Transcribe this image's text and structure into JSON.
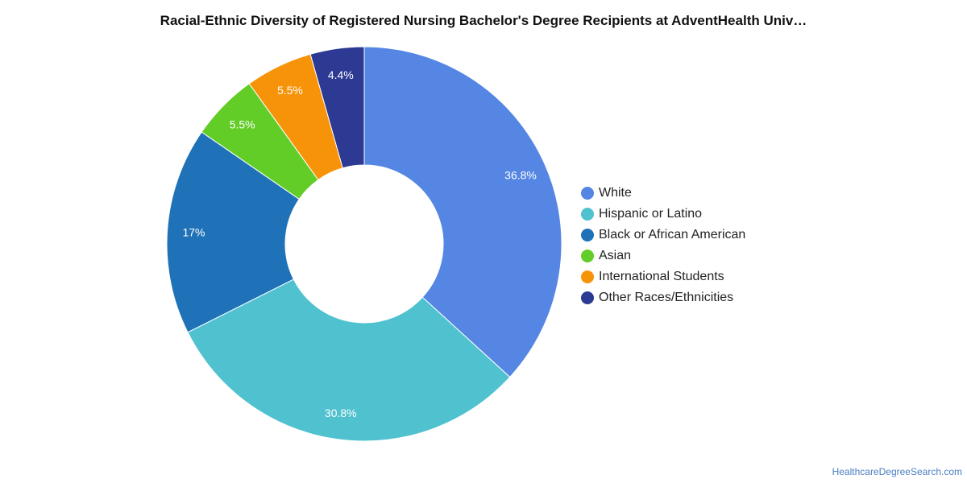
{
  "title": "Racial-Ethnic Diversity of Registered Nursing Bachelor's Degree Recipients at AdventHealth Univ…",
  "source_link": "HealthcareDegreeSearch.com",
  "chart_data": {
    "type": "pie",
    "title": "Racial-Ethnic Diversity of Registered Nursing Bachelor's Degree Recipients at AdventHealth Univ…",
    "hole": true,
    "legend_position": "right",
    "slices": [
      {
        "name": "White",
        "value": 36.8,
        "label": "36.8%",
        "color": "#5586e3"
      },
      {
        "name": "Hispanic or Latino",
        "value": 30.8,
        "label": "30.8%",
        "color": "#50c2cf"
      },
      {
        "name": "Black or African American",
        "value": 17,
        "label": "17%",
        "color": "#1f72b8"
      },
      {
        "name": "Asian",
        "value": 5.5,
        "label": "5.5%",
        "color": "#63cd28"
      },
      {
        "name": "International Students",
        "value": 5.5,
        "label": "5.5%",
        "color": "#f79309"
      },
      {
        "name": "Other Races/Ethnicities",
        "value": 4.4,
        "label": "4.4%",
        "color": "#2d3a94"
      }
    ]
  }
}
